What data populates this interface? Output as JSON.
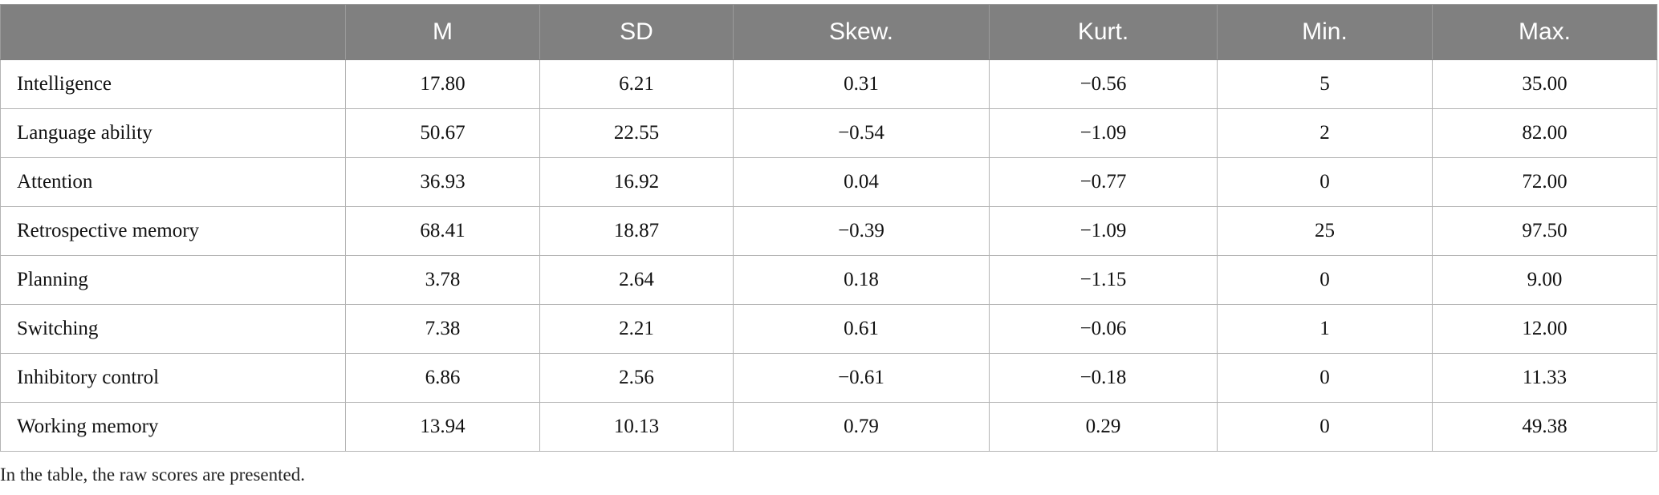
{
  "table": {
    "columns": [
      "",
      "M",
      "SD",
      "Skew.",
      "Kurt.",
      "Min.",
      "Max."
    ],
    "rows": [
      {
        "label": "Intelligence",
        "values": [
          "17.80",
          "6.21",
          "0.31",
          "−0.56",
          "5",
          "35.00"
        ]
      },
      {
        "label": "Language ability",
        "values": [
          "50.67",
          "22.55",
          "−0.54",
          "−1.09",
          "2",
          "82.00"
        ]
      },
      {
        "label": "Attention",
        "values": [
          "36.93",
          "16.92",
          "0.04",
          "−0.77",
          "0",
          "72.00"
        ]
      },
      {
        "label": "Retrospective memory",
        "values": [
          "68.41",
          "18.87",
          "−0.39",
          "−1.09",
          "25",
          "97.50"
        ]
      },
      {
        "label": "Planning",
        "values": [
          "3.78",
          "2.64",
          "0.18",
          "−1.15",
          "0",
          "9.00"
        ]
      },
      {
        "label": "Switching",
        "values": [
          "7.38",
          "2.21",
          "0.61",
          "−0.06",
          "1",
          "12.00"
        ]
      },
      {
        "label": "Inhibitory control",
        "values": [
          "6.86",
          "2.56",
          "−0.61",
          "−0.18",
          "0",
          "11.33"
        ]
      },
      {
        "label": "Working memory",
        "values": [
          "13.94",
          "10.13",
          "0.79",
          "0.29",
          "0",
          "49.38"
        ]
      }
    ]
  },
  "footnote": "In the table, the raw scores are presented.",
  "colors": {
    "header_bg": "#808080",
    "header_text": "#ffffff",
    "grid": "#b4b4b4"
  }
}
